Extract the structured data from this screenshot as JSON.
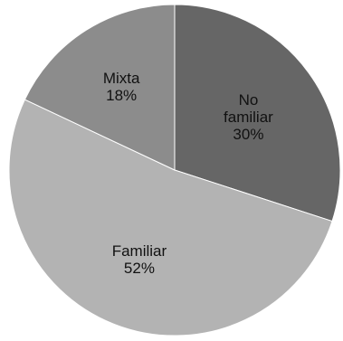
{
  "chart_data": {
    "type": "pie",
    "title": "",
    "slices": [
      {
        "name": "No familiar",
        "label_lines": [
          "No",
          "familiar"
        ],
        "value": 30,
        "value_label": "30%",
        "color": "#666666"
      },
      {
        "name": "Familiar",
        "label_lines": [
          "Familiar"
        ],
        "value": 52,
        "value_label": "52%",
        "color": "#b3b3b3"
      },
      {
        "name": "Mixta",
        "label_lines": [
          "Mixta"
        ],
        "value": 18,
        "value_label": "18%",
        "color": "#8c8c8c"
      }
    ],
    "start_direction": "top",
    "slice_order": "clockwise",
    "slice_border_color": "#ffffff",
    "legend": "none"
  }
}
